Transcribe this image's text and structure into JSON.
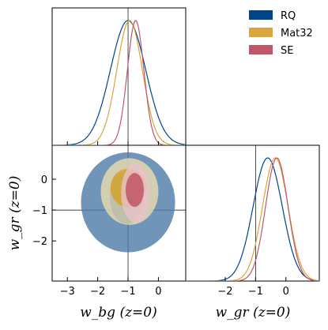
{
  "chart_data": {
    "type": "corner",
    "parameters": [
      {
        "name": "w_bg",
        "xlabel": "w_bg (z=0)",
        "xlim": [
          -3.5,
          0.9
        ],
        "ticks": [
          -3,
          -2,
          -1,
          0
        ],
        "tick_labels": [
          "−3",
          "−2",
          "−1",
          "0"
        ],
        "truth": -1
      },
      {
        "name": "w_gr",
        "xlabel": "w_gr (z=0)",
        "xlim": [
          -3.3,
          1.1
        ],
        "ticks": [
          -2,
          -1,
          0
        ],
        "tick_labels": [
          "−2",
          "−1",
          "0"
        ],
        "truth": -1
      }
    ],
    "ylabel_2d": "w_gr (z=0)",
    "ylim_2d": [
      -3.3,
      1.1
    ],
    "yticks_2d": [
      0,
      -1,
      -2
    ],
    "ytick_labels_2d": [
      "0",
      "−1",
      "−2"
    ],
    "legend": {
      "position": "top-right",
      "entries": [
        "RQ",
        "Mat32",
        "SE"
      ]
    },
    "series": [
      {
        "name": "RQ",
        "color": "#00448a",
        "fill_68": "#00448a",
        "fill_95": "#4d7aa8",
        "marginal_w_bg": {
          "mean": -1.0,
          "sd": 0.58
        },
        "marginal_w_gr": {
          "mean": -0.6,
          "sd": 0.48
        },
        "contour_68": {
          "center": [
            -1.05,
            -0.6
          ],
          "half_width": 0.55,
          "half_height": 0.85
        },
        "contour_95": {
          "center": [
            -1.0,
            -0.75
          ],
          "half_width": 1.55,
          "half_height": 1.62
        }
      },
      {
        "name": "Mat32",
        "color": "#d9a53c",
        "fill_68": "#d4a22e",
        "fill_95": "#ecdcb0",
        "marginal_w_bg": {
          "mean": -0.95,
          "sd": 0.42
        },
        "marginal_w_gr": {
          "mean": -0.35,
          "sd": 0.42
        },
        "contour_68": {
          "center": [
            -1.0,
            -0.28
          ],
          "half_width": 0.58,
          "half_height": 0.62
        },
        "contour_95": {
          "center": [
            -0.95,
            -0.4
          ],
          "half_width": 0.95,
          "half_height": 1.08
        }
      },
      {
        "name": "SE",
        "color": "#c0566a",
        "fill_68": "#c0566a",
        "fill_95": "#e9c2c9",
        "marginal_w_bg": {
          "mean": -0.75,
          "sd": 0.27
        },
        "marginal_w_gr": {
          "mean": -0.3,
          "sd": 0.37
        },
        "contour_68": {
          "center": [
            -0.78,
            -0.35
          ],
          "half_width": 0.3,
          "half_height": 0.55
        },
        "contour_95": {
          "center": [
            -0.75,
            -0.45
          ],
          "half_width": 0.48,
          "half_height": 0.95
        }
      }
    ]
  }
}
